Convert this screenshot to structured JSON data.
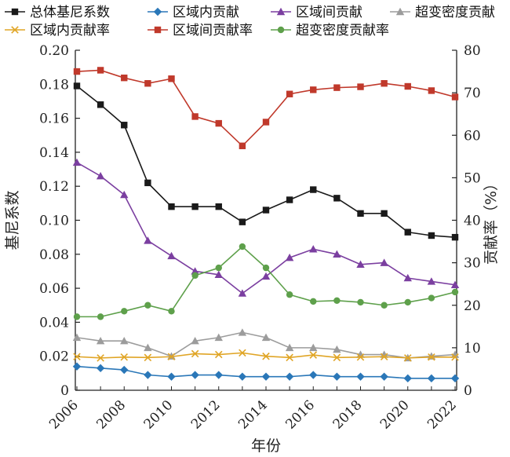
{
  "chart_data": {
    "type": "line",
    "title": "",
    "xlabel": "年份",
    "ylabel": "基尼系数",
    "y2label": "贡献率（%）",
    "x": [
      2006,
      2007,
      2008,
      2009,
      2010,
      2011,
      2012,
      2013,
      2014,
      2015,
      2016,
      2017,
      2018,
      2019,
      2020,
      2021,
      2022
    ],
    "x_tick_labels": [
      "2006",
      "2008",
      "2010",
      "2012",
      "2014",
      "2016",
      "2018",
      "2020",
      "2022"
    ],
    "ylim": [
      0,
      0.2
    ],
    "y_tick_labels": [
      "0",
      "0.02",
      "0.04",
      "0.06",
      "0.08",
      "0.10",
      "0.12",
      "0.14",
      "0.16",
      "0.18",
      "0.20"
    ],
    "y2lim": [
      0,
      80
    ],
    "y2_tick_labels": [
      "0",
      "10",
      "20",
      "30",
      "40",
      "50",
      "60",
      "70",
      "80"
    ],
    "legend_position": "top",
    "series": [
      {
        "name": "总体基尼系数",
        "axis": "left",
        "color": "#1a1a1a",
        "marker": "square",
        "values": [
          0.179,
          0.168,
          0.156,
          0.122,
          0.108,
          0.108,
          0.108,
          0.099,
          0.106,
          0.112,
          0.118,
          0.113,
          0.104,
          0.104,
          0.093,
          0.091,
          0.09
        ]
      },
      {
        "name": "区域内贡献",
        "axis": "left",
        "color": "#2a77b8",
        "marker": "diamond",
        "values": [
          0.014,
          0.013,
          0.012,
          0.009,
          0.008,
          0.009,
          0.009,
          0.008,
          0.008,
          0.008,
          0.009,
          0.008,
          0.008,
          0.008,
          0.007,
          0.007,
          0.007
        ]
      },
      {
        "name": "区域间贡献",
        "axis": "left",
        "color": "#7b3fa0",
        "marker": "triangle",
        "values": [
          0.134,
          0.126,
          0.115,
          0.088,
          0.079,
          0.07,
          0.068,
          0.057,
          0.067,
          0.078,
          0.083,
          0.08,
          0.074,
          0.075,
          0.066,
          0.064,
          0.062
        ]
      },
      {
        "name": "超变密度贡献",
        "axis": "left",
        "color": "#9c9c9c",
        "marker": "triangle",
        "values": [
          0.031,
          0.029,
          0.029,
          0.025,
          0.02,
          0.029,
          0.031,
          0.034,
          0.031,
          0.025,
          0.025,
          0.024,
          0.021,
          0.021,
          0.019,
          0.02,
          0.021
        ]
      },
      {
        "name": "区域内贡献率",
        "axis": "right",
        "color": "#e0a526",
        "marker": "x",
        "values": [
          7.9,
          7.6,
          7.8,
          7.7,
          7.9,
          8.6,
          8.4,
          8.8,
          8.0,
          7.7,
          8.3,
          7.7,
          7.8,
          7.9,
          7.6,
          7.8,
          7.8
        ]
      },
      {
        "name": "区域间贡献率",
        "axis": "right",
        "color": "#c0392b",
        "marker": "square",
        "values": [
          75.0,
          75.3,
          73.5,
          72.2,
          73.3,
          64.4,
          62.8,
          57.5,
          63.1,
          69.7,
          70.7,
          71.2,
          71.4,
          72.2,
          71.5,
          70.5,
          69.0
        ]
      },
      {
        "name": "超变密度贡献率",
        "axis": "right",
        "color": "#5ea04b",
        "marker": "circle",
        "values": [
          17.3,
          17.3,
          18.6,
          20.0,
          18.6,
          27.0,
          28.8,
          33.8,
          28.8,
          22.5,
          20.9,
          21.1,
          20.7,
          20.0,
          20.7,
          21.7,
          23.1
        ]
      }
    ]
  }
}
